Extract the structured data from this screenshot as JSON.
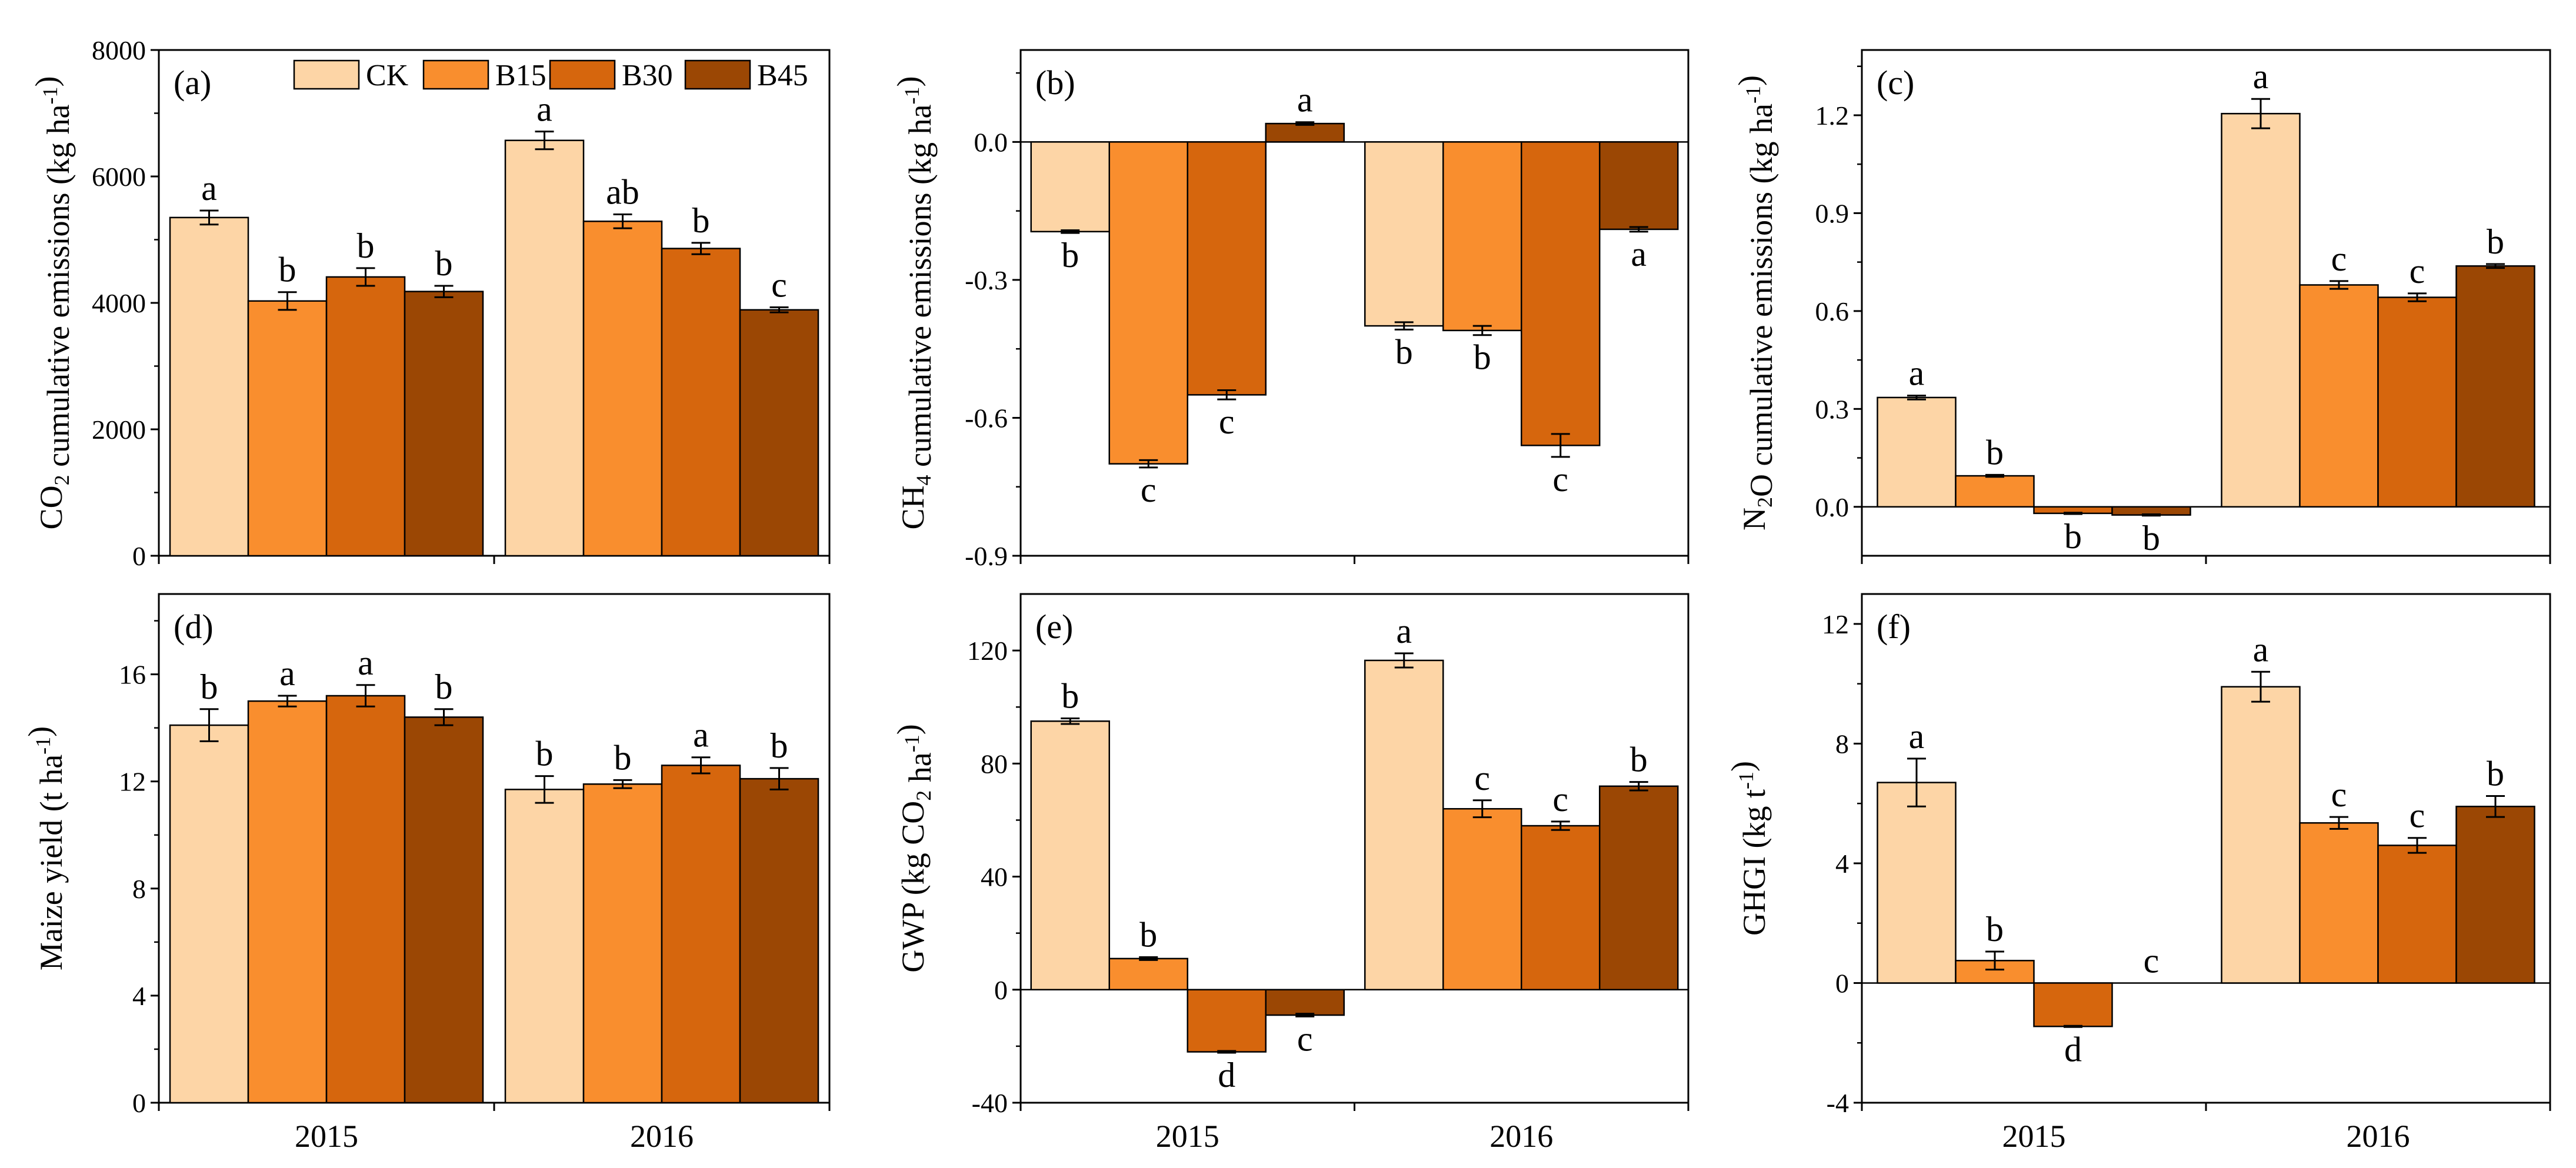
{
  "colors": {
    "CK": "#fdd5a6",
    "B15": "#f98e2e",
    "B30": "#d6660d",
    "B45": "#9b4704",
    "axis": "#000000"
  },
  "legend": [
    "CK",
    "B15",
    "B30",
    "B45"
  ],
  "chart_data": [
    {
      "id": "a",
      "type": "bar",
      "panel_label": "(a)",
      "ylabel": "CO2 cumulative emissions (kg ha-1)",
      "ylabel_parts": [
        [
          "CO"
        ],
        [
          "2",
          "sub"
        ],
        [
          " cumulative  emissions (kg ha"
        ],
        [
          "-1",
          "sup"
        ],
        [
          ")"
        ]
      ],
      "categories": [
        "2015",
        "2016"
      ],
      "ylim": [
        0,
        8000
      ],
      "ymax_plot": 8000,
      "yticks": [
        0,
        2000,
        4000,
        6000,
        8000
      ],
      "ytick_labels": [
        "0",
        "2000",
        "4000",
        "6000",
        "8000"
      ],
      "series": [
        {
          "name": "CK",
          "values": [
            5350,
            6570
          ],
          "errors": [
            110,
            140
          ],
          "letters": [
            "a",
            "a"
          ]
        },
        {
          "name": "B15",
          "values": [
            4030,
            5290
          ],
          "errors": [
            140,
            110
          ],
          "letters": [
            "b",
            "ab"
          ]
        },
        {
          "name": "B30",
          "values": [
            4410,
            4860
          ],
          "errors": [
            140,
            90
          ],
          "letters": [
            "b",
            "b"
          ]
        },
        {
          "name": "B45",
          "values": [
            4180,
            3890
          ],
          "errors": [
            90,
            40
          ],
          "letters": [
            "b",
            "c"
          ]
        }
      ]
    },
    {
      "id": "b",
      "type": "bar",
      "panel_label": "(b)",
      "ylabel": "CH4 cumulative  emissions (kg ha-1)",
      "ylabel_parts": [
        [
          "CH"
        ],
        [
          "4",
          "sub"
        ],
        [
          " cumulative  emissions (kg ha"
        ],
        [
          "-1",
          "sup"
        ],
        [
          ")"
        ]
      ],
      "categories": [
        "2015",
        "2016"
      ],
      "ylim": [
        -0.9,
        0.2
      ],
      "ymax_plot": 0.2,
      "yticks": [
        -0.9,
        -0.6,
        -0.3,
        0.0
      ],
      "ytick_labels": [
        "-0.9",
        "-0.6",
        "-0.3",
        "0.0"
      ],
      "series": [
        {
          "name": "CK",
          "values": [
            -0.195,
            -0.4
          ],
          "errors": [
            0.003,
            0.008
          ],
          "letters": [
            "b",
            "b"
          ]
        },
        {
          "name": "B15",
          "values": [
            -0.7,
            -0.41
          ],
          "errors": [
            0.008,
            0.01
          ],
          "letters": [
            "c",
            "b"
          ]
        },
        {
          "name": "B30",
          "values": [
            -0.55,
            -0.66
          ],
          "errors": [
            0.01,
            0.025
          ],
          "letters": [
            "c",
            "c"
          ]
        },
        {
          "name": "B45",
          "values": [
            0.04,
            -0.19
          ],
          "errors": [
            0.003,
            0.005
          ],
          "letters": [
            "a",
            "a"
          ]
        }
      ]
    },
    {
      "id": "c",
      "type": "bar",
      "panel_label": "(c)",
      "ylabel": "N2O cumulative emissions (kg ha-1)",
      "ylabel_parts": [
        [
          "N"
        ],
        [
          "2",
          "sub"
        ],
        [
          "O cumulative  emissions (kg ha"
        ],
        [
          "-1",
          "sup"
        ],
        [
          ")"
        ]
      ],
      "categories": [
        "2015",
        "2016"
      ],
      "ylim": [
        -0.15,
        1.4
      ],
      "ymax_plot": 1.4,
      "yticks": [
        0.0,
        0.3,
        0.6,
        0.9,
        1.2
      ],
      "ytick_labels": [
        "0.0",
        "0.3",
        "0.6",
        "0.9",
        "1.2"
      ],
      "series": [
        {
          "name": "CK",
          "values": [
            0.335,
            1.205
          ],
          "errors": [
            0.006,
            0.045
          ],
          "letters": [
            "a",
            "a"
          ]
        },
        {
          "name": "B15",
          "values": [
            0.095,
            0.68
          ],
          "errors": [
            0.003,
            0.012
          ],
          "letters": [
            "b",
            "c"
          ]
        },
        {
          "name": "B30",
          "values": [
            -0.02,
            0.642
          ],
          "errors": [
            0.002,
            0.012
          ],
          "letters": [
            "b",
            "c"
          ]
        },
        {
          "name": "B45",
          "values": [
            -0.025,
            0.738
          ],
          "errors": [
            0.002,
            0.006
          ],
          "letters": [
            "b",
            "b"
          ]
        }
      ]
    },
    {
      "id": "d",
      "type": "bar",
      "panel_label": "(d)",
      "ylabel": "Maize yield (t ha-1)",
      "ylabel_parts": [
        [
          "Maize yield (t ha"
        ],
        [
          "-1",
          "sup"
        ],
        [
          ")"
        ]
      ],
      "categories": [
        "2015",
        "2016"
      ],
      "ylim": [
        0,
        19
      ],
      "ymax_plot": 19,
      "yticks": [
        0,
        4,
        8,
        12,
        16
      ],
      "ytick_labels": [
        "0",
        "4",
        "8",
        "12",
        "16"
      ],
      "series": [
        {
          "name": "CK",
          "values": [
            14.1,
            11.7
          ],
          "errors": [
            0.6,
            0.5
          ],
          "letters": [
            "b",
            "b"
          ]
        },
        {
          "name": "B15",
          "values": [
            15.0,
            11.9
          ],
          "errors": [
            0.2,
            0.15
          ],
          "letters": [
            "a",
            "b"
          ]
        },
        {
          "name": "B30",
          "values": [
            15.2,
            12.6
          ],
          "errors": [
            0.4,
            0.3
          ],
          "letters": [
            "a",
            "a"
          ]
        },
        {
          "name": "B45",
          "values": [
            14.4,
            12.1
          ],
          "errors": [
            0.3,
            0.4
          ],
          "letters": [
            "b",
            "b"
          ]
        }
      ]
    },
    {
      "id": "e",
      "type": "bar",
      "panel_label": "(e)",
      "ylabel": "GWP (kg CO2 ha-1)",
      "ylabel_parts": [
        [
          "GWP (kg CO"
        ],
        [
          "2",
          "sub"
        ],
        [
          " ha"
        ],
        [
          "-1",
          "sup"
        ],
        [
          ")"
        ]
      ],
      "categories": [
        "2015",
        "2016"
      ],
      "ylim": [
        -40,
        140
      ],
      "ymax_plot": 140,
      "yticks": [
        -40,
        0,
        40,
        80,
        120
      ],
      "ytick_labels": [
        "-40",
        "0",
        "40",
        "80",
        "120"
      ],
      "series": [
        {
          "name": "CK",
          "values": [
            95,
            116.5
          ],
          "errors": [
            1,
            2.5
          ],
          "letters": [
            "b",
            "a"
          ]
        },
        {
          "name": "B15",
          "values": [
            11,
            64
          ],
          "errors": [
            0.5,
            3
          ],
          "letters": [
            "b",
            "c"
          ]
        },
        {
          "name": "B30",
          "values": [
            -22,
            58
          ],
          "errors": [
            0.3,
            1.5
          ],
          "letters": [
            "d",
            "c"
          ]
        },
        {
          "name": "B45",
          "values": [
            -9,
            72
          ],
          "errors": [
            0.5,
            1.5
          ],
          "letters": [
            "c",
            "b"
          ]
        }
      ]
    },
    {
      "id": "f",
      "type": "bar",
      "panel_label": "(f)",
      "ylabel": "GHGI (kg t-1)",
      "ylabel_parts": [
        [
          "GHGI (kg t"
        ],
        [
          "-1",
          "sup"
        ],
        [
          ")"
        ]
      ],
      "categories": [
        "2015",
        "2016"
      ],
      "ylim": [
        -4,
        13
      ],
      "ymax_plot": 13,
      "yticks": [
        -4,
        0,
        4,
        8,
        12
      ],
      "ytick_labels": [
        "-4",
        "0",
        "4",
        "8",
        "12"
      ],
      "series": [
        {
          "name": "CK",
          "values": [
            6.7,
            9.9
          ],
          "errors": [
            0.8,
            0.5
          ],
          "letters": [
            "a",
            "a"
          ]
        },
        {
          "name": "B15",
          "values": [
            0.75,
            5.35
          ],
          "errors": [
            0.3,
            0.2
          ],
          "letters": [
            "b",
            "c"
          ]
        },
        {
          "name": "B30",
          "values": [
            -1.45,
            4.6
          ],
          "errors": [
            0.02,
            0.25
          ],
          "letters": [
            "d",
            "c"
          ]
        },
        {
          "name": "B45",
          "values": [
            0,
            5.9
          ],
          "errors": [
            0,
            0.35
          ],
          "letters": [
            "c",
            "b"
          ]
        }
      ]
    }
  ]
}
